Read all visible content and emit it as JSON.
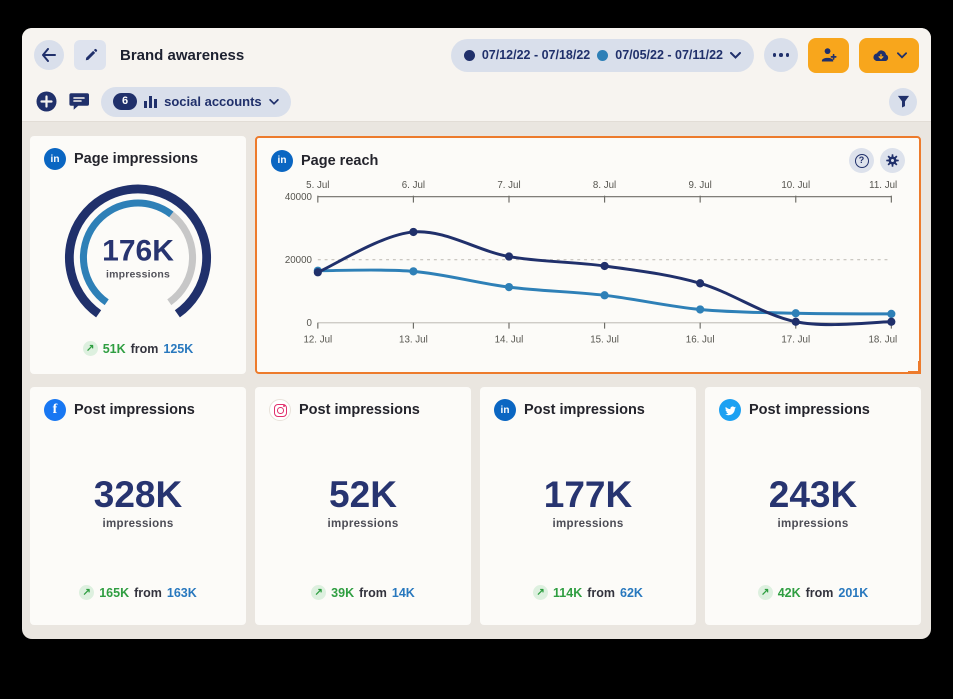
{
  "header": {
    "title": "Brand awareness",
    "date_ranges": [
      {
        "label": "07/12/22 - 07/18/22",
        "color": "#20306b"
      },
      {
        "label": "07/05/22 - 07/11/22",
        "color": "#2e80b7"
      }
    ]
  },
  "toolbar": {
    "accounts_badge": "6",
    "accounts_label": "social accounts"
  },
  "icons": {
    "trend_up": "↗",
    "facebook_glyph": "f",
    "linkedin_glyph": "in",
    "help_glyph": "?"
  },
  "cards": {
    "page_impressions": {
      "network": "linkedin",
      "title": "Page impressions",
      "value": "176K",
      "unit": "impressions",
      "delta": "51K",
      "from_label": "from",
      "previous": "125K",
      "gauge_percent": 63
    },
    "page_reach": {
      "network": "linkedin",
      "title": "Page reach"
    },
    "post_impressions": [
      {
        "network": "facebook",
        "title": "Post impressions",
        "value": "328K",
        "unit": "impressions",
        "delta": "165K",
        "from_label": "from",
        "previous": "163K"
      },
      {
        "network": "instagram",
        "title": "Post impressions",
        "value": "52K",
        "unit": "impressions",
        "delta": "39K",
        "from_label": "from",
        "previous": "14K"
      },
      {
        "network": "linkedin",
        "title": "Post impressions",
        "value": "177K",
        "unit": "impressions",
        "delta": "114K",
        "from_label": "from",
        "previous": "62K"
      },
      {
        "network": "twitter",
        "title": "Post impressions",
        "value": "243K",
        "unit": "impressions",
        "delta": "42K",
        "from_label": "from",
        "previous": "201K"
      }
    ]
  },
  "chart_data": {
    "type": "line",
    "title": "Page reach",
    "x_top_labels": [
      "5. Jul",
      "6. Jul",
      "7. Jul",
      "8. Jul",
      "9. Jul",
      "10. Jul",
      "11. Jul"
    ],
    "x_bottom_labels": [
      "12. Jul",
      "13. Jul",
      "14. Jul",
      "15. Jul",
      "16. Jul",
      "17. Jul",
      "18. Jul"
    ],
    "y_ticks": [
      0,
      20000,
      40000
    ],
    "ylim": [
      0,
      40000
    ],
    "grid_dashed_at": 20000,
    "legend_position": "none",
    "series": [
      {
        "name": "07/12/22 - 07/18/22",
        "color": "#20306b",
        "values": [
          16000,
          28800,
          21000,
          18000,
          12500,
          300,
          300
        ]
      },
      {
        "name": "07/05/22 - 07/11/22",
        "color": "#2e80b7",
        "values": [
          16500,
          16300,
          11300,
          8700,
          4200,
          3000,
          2800
        ]
      }
    ]
  },
  "colors": {
    "accent_orange_border": "#ed7b2c",
    "action_amber": "#f8a61c",
    "navy": "#20306b",
    "series_blue": "#2e80b7",
    "gauge_rest_gray": "#c7c7c7",
    "positive_green": "#2f9e41",
    "link_blue": "#2878be"
  }
}
